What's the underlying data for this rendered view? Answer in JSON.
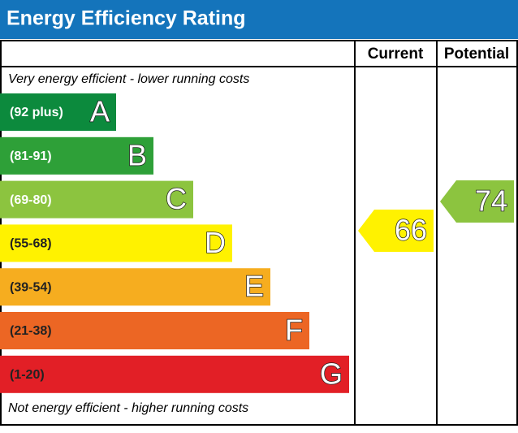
{
  "header": {
    "title": "Energy Efficiency Rating"
  },
  "columns": [
    "Current",
    "Potential"
  ],
  "top_note": "Very energy efficient - lower running costs",
  "bottom_note": "Not energy efficient - higher running costs",
  "bands": [
    {
      "range": "(92 plus)",
      "letter": "A",
      "color": "#0c8a3d"
    },
    {
      "range": "(81-91)",
      "letter": "B",
      "color": "#2ea038"
    },
    {
      "range": "(69-80)",
      "letter": "C",
      "color": "#8cc43f"
    },
    {
      "range": "(55-68)",
      "letter": "D",
      "color": "#fff200"
    },
    {
      "range": "(39-54)",
      "letter": "E",
      "color": "#f6ad1f"
    },
    {
      "range": "(21-38)",
      "letter": "F",
      "color": "#ec6624"
    },
    {
      "range": "(1-20)",
      "letter": "G",
      "color": "#e21f26"
    }
  ],
  "current": {
    "value": 66,
    "color": "#fff200"
  },
  "potential": {
    "value": 74,
    "color": "#8cc43f"
  }
}
